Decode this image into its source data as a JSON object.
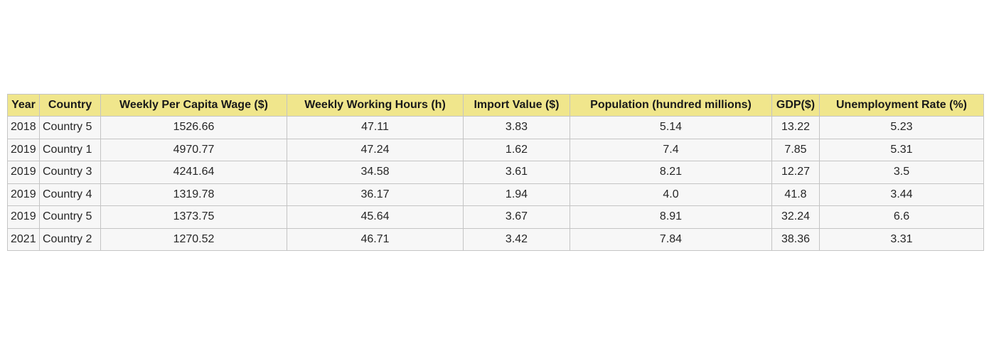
{
  "chart_data": {
    "type": "table",
    "columns": [
      "Year",
      "Country",
      "Weekly Per Capita Wage ($)",
      "Weekly Working Hours (h)",
      "Import Value ($)",
      "Population (hundred millions)",
      "GDP($)",
      "Unemployment Rate (%)"
    ],
    "rows": [
      [
        "2018",
        "Country 5",
        "1526.66",
        "47.11",
        "3.83",
        "5.14",
        "13.22",
        "5.23"
      ],
      [
        "2019",
        "Country 1",
        "4970.77",
        "47.24",
        "1.62",
        "7.4",
        "7.85",
        "5.31"
      ],
      [
        "2019",
        "Country 3",
        "4241.64",
        "34.58",
        "3.61",
        "8.21",
        "12.27",
        "3.5"
      ],
      [
        "2019",
        "Country 4",
        "1319.78",
        "36.17",
        "1.94",
        "4.0",
        "41.8",
        "3.44"
      ],
      [
        "2019",
        "Country 5",
        "1373.75",
        "45.64",
        "3.67",
        "8.91",
        "32.24",
        "6.6"
      ],
      [
        "2021",
        "Country 2",
        "1270.52",
        "46.71",
        "3.42",
        "7.84",
        "38.36",
        "3.31"
      ]
    ],
    "header_color": "#f0e68c",
    "cell_color": "#f7f7f7",
    "border_color": "#c4c4c4"
  }
}
